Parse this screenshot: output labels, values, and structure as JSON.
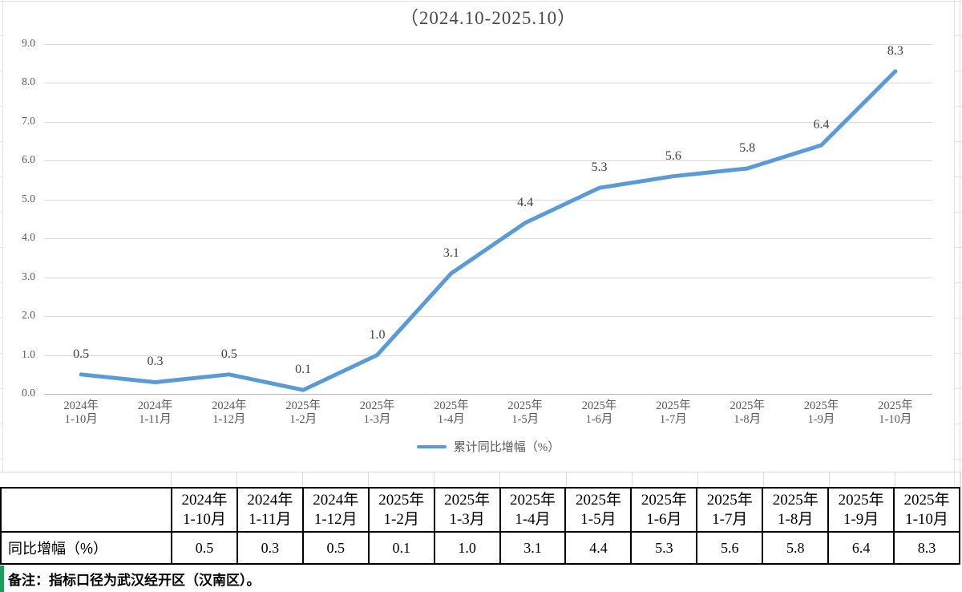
{
  "chart": {
    "title": "（2024.10-2025.10）",
    "legend_label": "累计同比增幅（%）"
  },
  "chart_data": {
    "type": "line",
    "title": "（2024.10-2025.10）",
    "series": [
      {
        "name": "累计同比增幅（%）",
        "values": [
          0.5,
          0.3,
          0.5,
          0.1,
          1.0,
          3.1,
          4.4,
          5.3,
          5.6,
          5.8,
          6.4,
          8.3
        ]
      }
    ],
    "value_labels": [
      "0.5",
      "0.3",
      "0.5",
      "0.1",
      "1.0",
      "3.1",
      "4.4",
      "5.3",
      "5.6",
      "5.8",
      "6.4",
      "8.3"
    ],
    "categories": [
      {
        "year": "2024年",
        "period": "1-10月"
      },
      {
        "year": "2024年",
        "period": "1-11月"
      },
      {
        "year": "2024年",
        "period": "1-12月"
      },
      {
        "year": "2025年",
        "period": "1-2月"
      },
      {
        "year": "2025年",
        "period": "1-3月"
      },
      {
        "year": "2025年",
        "period": "1-4月"
      },
      {
        "year": "2025年",
        "period": "1-5月"
      },
      {
        "year": "2025年",
        "period": "1-6月"
      },
      {
        "year": "2025年",
        "period": "1-7月"
      },
      {
        "year": "2025年",
        "period": "1-8月"
      },
      {
        "year": "2025年",
        "period": "1-9月"
      },
      {
        "year": "2025年",
        "period": "1-10月"
      }
    ],
    "ylim": [
      0,
      9
    ],
    "ytick_step": 1.0,
    "ytick_labels": [
      "0.0",
      "1.0",
      "2.0",
      "3.0",
      "4.0",
      "5.0",
      "6.0",
      "7.0",
      "8.0",
      "9.0"
    ],
    "grid": true,
    "legend_position": "bottom",
    "line_color": "#5B9BD5"
  },
  "table": {
    "row_header": "同比增幅（%）",
    "columns": [
      "2024年\n1-10月",
      "2024年\n1-11月",
      "2024年\n1-12月",
      "2025年\n1-2月",
      "2025年\n1-3月",
      "2025年\n1-4月",
      "2025年\n1-5月",
      "2025年\n1-6月",
      "2025年\n1-7月",
      "2025年\n1-8月",
      "2025年\n1-9月",
      "2025年\n1-10月"
    ],
    "values": [
      "0.5",
      "0.3",
      "0.5",
      "0.1",
      "1.0",
      "3.1",
      "4.4",
      "5.3",
      "5.6",
      "5.8",
      "6.4",
      "8.3"
    ]
  },
  "note": {
    "text": "备注：指标口径为武汉经开区（汉南区）。",
    "accent_color": "#1E9E5C"
  },
  "colors": {
    "line": "#5B9BD5",
    "gridline": "#D9D9D9",
    "axis": "#BFBFBF",
    "label": "#595959",
    "table_border": "#000000"
  }
}
